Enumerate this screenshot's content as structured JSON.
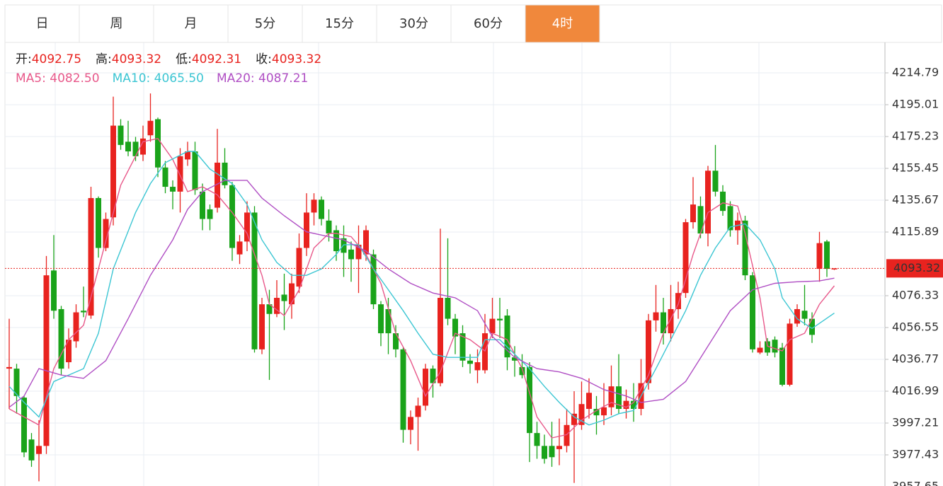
{
  "tabs": {
    "items": [
      "日",
      "周",
      "月",
      "5分",
      "15分",
      "30分",
      "60分",
      "4时"
    ],
    "active": 7
  },
  "chart_data": {
    "type": "candlestick",
    "info_labels": [
      "开:",
      "高:",
      "低:",
      "收:"
    ],
    "legend_separator": ": ",
    "up_color": "#e8231f",
    "down_color": "#1aa31a",
    "ylim": [
      3957.65,
      4233.69
    ],
    "yticks": [
      4214.79,
      4195.01,
      4175.23,
      4155.45,
      4135.67,
      4115.89,
      4076.33,
      4056.55,
      4036.77,
      4016.99,
      3997.21,
      3977.43,
      3957.65
    ],
    "grid": true,
    "candles": [
      {
        "open": 4031,
        "high": 4062,
        "low": 4006,
        "close": 4032
      },
      {
        "open": 4031,
        "high": 4034,
        "low": 4003,
        "close": 4014
      },
      {
        "open": 4013,
        "high": 4014,
        "low": 3976,
        "close": 3979
      },
      {
        "open": 3987,
        "high": 3991,
        "low": 3970,
        "close": 3974
      },
      {
        "open": 3978,
        "high": 3999,
        "low": 3961,
        "close": 3983
      },
      {
        "open": 3983,
        "high": 4101,
        "low": 3978,
        "close": 4089
      },
      {
        "open": 4092,
        "high": 4114,
        "low": 4062,
        "close": 4067
      },
      {
        "open": 4068,
        "high": 4070,
        "low": 4027,
        "close": 4031
      },
      {
        "open": 4035,
        "high": 4056,
        "low": 4031,
        "close": 4049
      },
      {
        "open": 4048,
        "high": 4071,
        "low": 4044,
        "close": 4066
      },
      {
        "open": 4067,
        "high": 4082,
        "low": 4063,
        "close": 4066
      },
      {
        "open": 4064,
        "high": 4144,
        "low": 4062,
        "close": 4137
      },
      {
        "open": 4137,
        "high": 4138,
        "low": 4100,
        "close": 4106
      },
      {
        "open": 4106,
        "high": 4128,
        "low": 4104,
        "close": 4124
      },
      {
        "open": 4125,
        "high": 4200,
        "low": 4120,
        "close": 4182
      },
      {
        "open": 4182,
        "high": 4186,
        "low": 4167,
        "close": 4170
      },
      {
        "open": 4172,
        "high": 4185,
        "low": 4163,
        "close": 4166
      },
      {
        "open": 4172,
        "high": 4175,
        "low": 4160,
        "close": 4163
      },
      {
        "open": 4164,
        "high": 4182,
        "low": 4160,
        "close": 4174
      },
      {
        "open": 4176,
        "high": 4202,
        "low": 4172,
        "close": 4185
      },
      {
        "open": 4186,
        "high": 4187,
        "low": 4150,
        "close": 4156
      },
      {
        "open": 4156,
        "high": 4160,
        "low": 4140,
        "close": 4144
      },
      {
        "open": 4144,
        "high": 4148,
        "low": 4130,
        "close": 4141
      },
      {
        "open": 4141,
        "high": 4168,
        "low": 4128,
        "close": 4163
      },
      {
        "open": 4161,
        "high": 4172,
        "low": 4157,
        "close": 4166
      },
      {
        "open": 4166,
        "high": 4172,
        "low": 4139,
        "close": 4142
      },
      {
        "open": 4141,
        "high": 4146,
        "low": 4117,
        "close": 4124
      },
      {
        "open": 4130,
        "high": 4133,
        "low": 4117,
        "close": 4124
      },
      {
        "open": 4131,
        "high": 4180,
        "low": 4128,
        "close": 4159
      },
      {
        "open": 4159,
        "high": 4168,
        "low": 4143,
        "close": 4145
      },
      {
        "open": 4145,
        "high": 4147,
        "low": 4098,
        "close": 4106
      },
      {
        "open": 4102,
        "high": 4114,
        "low": 4096,
        "close": 4110
      },
      {
        "open": 4110,
        "high": 4135,
        "low": 4104,
        "close": 4128
      },
      {
        "open": 4128,
        "high": 4132,
        "low": 4041,
        "close": 4043
      },
      {
        "open": 4043,
        "high": 4075,
        "low": 4040,
        "close": 4071
      },
      {
        "open": 4071,
        "high": 4080,
        "low": 4024,
        "close": 4065
      },
      {
        "open": 4065,
        "high": 4086,
        "low": 4063,
        "close": 4075
      },
      {
        "open": 4077,
        "high": 4090,
        "low": 4055,
        "close": 4073
      },
      {
        "open": 4071,
        "high": 4090,
        "low": 4062,
        "close": 4084
      },
      {
        "open": 4082,
        "high": 4115,
        "low": 4078,
        "close": 4106
      },
      {
        "open": 4106,
        "high": 4140,
        "low": 4101,
        "close": 4128
      },
      {
        "open": 4128,
        "high": 4140,
        "low": 4120,
        "close": 4136
      },
      {
        "open": 4136,
        "high": 4138,
        "low": 4120,
        "close": 4124
      },
      {
        "open": 4123,
        "high": 4130,
        "low": 4110,
        "close": 4115
      },
      {
        "open": 4117,
        "high": 4120,
        "low": 4098,
        "close": 4104
      },
      {
        "open": 4112,
        "high": 4120,
        "low": 4088,
        "close": 4103
      },
      {
        "open": 4105,
        "high": 4110,
        "low": 4085,
        "close": 4099
      },
      {
        "open": 4099,
        "high": 4120,
        "low": 4078,
        "close": 4108
      },
      {
        "open": 4102,
        "high": 4120,
        "low": 4098,
        "close": 4117
      },
      {
        "open": 4102,
        "high": 4105,
        "low": 4068,
        "close": 4071
      },
      {
        "open": 4071,
        "high": 4073,
        "low": 4045,
        "close": 4053
      },
      {
        "open": 4068,
        "high": 4075,
        "low": 4040,
        "close": 4053
      },
      {
        "open": 4053,
        "high": 4058,
        "low": 4038,
        "close": 4043
      },
      {
        "open": 4043,
        "high": 4044,
        "low": 3985,
        "close": 3993
      },
      {
        "open": 3993,
        "high": 4005,
        "low": 3984,
        "close": 4001
      },
      {
        "open": 4001,
        "high": 4013,
        "low": 3980,
        "close": 4008
      },
      {
        "open": 4008,
        "high": 4034,
        "low": 4005,
        "close": 4031
      },
      {
        "open": 4031,
        "high": 4033,
        "low": 4013,
        "close": 4022
      },
      {
        "open": 4022,
        "high": 4118,
        "low": 4020,
        "close": 4075
      },
      {
        "open": 4075,
        "high": 4112,
        "low": 4058,
        "close": 4062
      },
      {
        "open": 4062,
        "high": 4065,
        "low": 4040,
        "close": 4051
      },
      {
        "open": 4053,
        "high": 4058,
        "low": 4032,
        "close": 4036
      },
      {
        "open": 4036,
        "high": 4040,
        "low": 4028,
        "close": 4034
      },
      {
        "open": 4030,
        "high": 4043,
        "low": 4022,
        "close": 4035
      },
      {
        "open": 4030,
        "high": 4065,
        "low": 4028,
        "close": 4053
      },
      {
        "open": 4053,
        "high": 4075,
        "low": 4050,
        "close": 4062
      },
      {
        "open": 4062,
        "high": 4075,
        "low": 4050,
        "close": 4061
      },
      {
        "open": 4064,
        "high": 4068,
        "low": 4030,
        "close": 4038
      },
      {
        "open": 4038,
        "high": 4045,
        "low": 4026,
        "close": 4036
      },
      {
        "open": 4032,
        "high": 4040,
        "low": 4025,
        "close": 4027
      },
      {
        "open": 4032,
        "high": 4035,
        "low": 3973,
        "close": 3991
      },
      {
        "open": 3991,
        "high": 3998,
        "low": 3975,
        "close": 3983
      },
      {
        "open": 3983,
        "high": 3990,
        "low": 3972,
        "close": 3975
      },
      {
        "open": 3983,
        "high": 3998,
        "low": 3970,
        "close": 3976
      },
      {
        "open": 3981,
        "high": 4000,
        "low": 3971,
        "close": 3983
      },
      {
        "open": 3983,
        "high": 4006,
        "low": 3979,
        "close": 3996
      },
      {
        "open": 3996,
        "high": 4017,
        "low": 3960,
        "close": 4003
      },
      {
        "open": 3996,
        "high": 4023,
        "low": 3993,
        "close": 4009
      },
      {
        "open": 4006,
        "high": 4025,
        "low": 4000,
        "close": 4016
      },
      {
        "open": 4006,
        "high": 4014,
        "low": 3990,
        "close": 4002
      },
      {
        "open": 4002,
        "high": 4022,
        "low": 3996,
        "close": 4007
      },
      {
        "open": 4007,
        "high": 4033,
        "low": 4002,
        "close": 4020
      },
      {
        "open": 4020,
        "high": 4040,
        "low": 4003,
        "close": 4006
      },
      {
        "open": 4006,
        "high": 4018,
        "low": 4000,
        "close": 4011
      },
      {
        "open": 4011,
        "high": 4022,
        "low": 3998,
        "close": 4006
      },
      {
        "open": 4006,
        "high": 4037,
        "low": 4002,
        "close": 4022
      },
      {
        "open": 4022,
        "high": 4065,
        "low": 4018,
        "close": 4061
      },
      {
        "open": 4061,
        "high": 4083,
        "low": 4054,
        "close": 4066
      },
      {
        "open": 4066,
        "high": 4075,
        "low": 4046,
        "close": 4053
      },
      {
        "open": 4053,
        "high": 4083,
        "low": 4048,
        "close": 4068
      },
      {
        "open": 4068,
        "high": 4085,
        "low": 4062,
        "close": 4078
      },
      {
        "open": 4078,
        "high": 4124,
        "low": 4075,
        "close": 4122
      },
      {
        "open": 4122,
        "high": 4150,
        "low": 4118,
        "close": 4133
      },
      {
        "open": 4132,
        "high": 4138,
        "low": 4112,
        "close": 4115
      },
      {
        "open": 4115,
        "high": 4157,
        "low": 4107,
        "close": 4154
      },
      {
        "open": 4154,
        "high": 4170,
        "low": 4138,
        "close": 4141
      },
      {
        "open": 4141,
        "high": 4145,
        "low": 4126,
        "close": 4129
      },
      {
        "open": 4132,
        "high": 4135,
        "low": 4113,
        "close": 4117
      },
      {
        "open": 4117,
        "high": 4128,
        "low": 4108,
        "close": 4123
      },
      {
        "open": 4123,
        "high": 4126,
        "low": 4086,
        "close": 4089
      },
      {
        "open": 4089,
        "high": 4091,
        "low": 4041,
        "close": 4043
      },
      {
        "open": 4041,
        "high": 4048,
        "low": 4040,
        "close": 4044
      },
      {
        "open": 4048,
        "high": 4050,
        "low": 4039,
        "close": 4041
      },
      {
        "open": 4049,
        "high": 4051,
        "low": 4038,
        "close": 4041
      },
      {
        "open": 4044,
        "high": 4047,
        "low": 4020,
        "close": 4021
      },
      {
        "open": 4021,
        "high": 4062,
        "low": 4020,
        "close": 4059
      },
      {
        "open": 4059,
        "high": 4071,
        "low": 4057,
        "close": 4068
      },
      {
        "open": 4067,
        "high": 4083,
        "low": 4058,
        "close": 4062
      },
      {
        "open": 4062,
        "high": 4066,
        "low": 4047,
        "close": 4052
      },
      {
        "open": 4093,
        "high": 4116,
        "low": 4085,
        "close": 4109
      },
      {
        "open": 4110,
        "high": 4111,
        "low": 4088,
        "close": 4093
      },
      {
        "open": 4092.75,
        "high": 4093.32,
        "low": 4092.31,
        "close": 4093.32
      }
    ],
    "series": [
      {
        "name": "MA5",
        "color": "#e8588a",
        "value_label": "4082.50",
        "x": [
          0,
          4,
          6,
          8,
          10,
          12,
          15,
          18,
          20,
          22,
          24,
          26,
          28,
          30,
          32,
          34,
          35,
          37,
          39,
          41,
          43,
          44,
          46,
          48,
          50,
          52,
          54,
          56,
          58,
          60,
          62,
          64,
          65,
          67,
          69,
          71,
          73,
          75,
          77,
          79,
          81,
          83,
          84,
          86,
          88,
          90,
          92,
          94,
          96,
          98,
          99,
          101,
          102,
          104,
          105,
          107,
          109,
          111
        ],
        "values": [
          4006,
          3996,
          4031,
          4049,
          4058,
          4093,
          4145,
          4172,
          4174,
          4161,
          4141,
          4144,
          4139,
          4128,
          4115,
          4089,
          4071,
          4064,
          4080,
          4106,
          4115,
          4115,
          4113,
          4102,
          4084,
          4053,
          4036,
          4014,
          4029,
          4053,
          4049,
          4042,
          4053,
          4049,
          4031,
          4001,
          3988,
          3990,
          3999,
          4005,
          4010,
          4007,
          4010,
          4027,
          4053,
          4071,
          4102,
          4128,
          4134,
          4132,
          4115,
          4075,
          4045,
          4042,
          4049,
          4053,
          4071,
          4082.5
        ]
      },
      {
        "name": "MA10",
        "color": "#3cc6d3",
        "value_label": "4065.50",
        "x": [
          0,
          2,
          4,
          6,
          10,
          12,
          14,
          17,
          19,
          21,
          24,
          25,
          27,
          30,
          32,
          34,
          36,
          38,
          40,
          42,
          44,
          45,
          47,
          49,
          51,
          53,
          55,
          57,
          59,
          61,
          63,
          64,
          66,
          68,
          70,
          72,
          74,
          76,
          78,
          80,
          82,
          84,
          85,
          87,
          89,
          91,
          93,
          95,
          97,
          99,
          101,
          103,
          104,
          106,
          108,
          111
        ],
        "values": [
          4020,
          4010,
          4001,
          4023,
          4031,
          4053,
          4093,
          4128,
          4146,
          4159,
          4166,
          4166,
          4155,
          4146,
          4133,
          4111,
          4097,
          4089,
          4089,
          4093,
          4102,
          4108,
          4108,
          4093,
          4080,
          4067,
          4053,
          4040,
          4038,
          4038,
          4038,
          4049,
          4049,
          4040,
          4031,
          4020,
          4010,
          4001,
          3996,
          3999,
          4003,
          4005,
          4014,
          4031,
          4049,
          4067,
          4089,
          4106,
          4119,
          4121,
          4111,
          4093,
          4075,
          4062,
          4056,
          4065.5
        ]
      },
      {
        "name": "MA20",
        "color": "#b04fc4",
        "value_label": "4087.21",
        "x": [
          0,
          2,
          4,
          7,
          10,
          13,
          16,
          19,
          22,
          24,
          26,
          29,
          32,
          34,
          37,
          40,
          43,
          45,
          48,
          51,
          54,
          57,
          60,
          63,
          65,
          68,
          71,
          74,
          77,
          80,
          83,
          85,
          88,
          91,
          94,
          97,
          100,
          103,
          106,
          109,
          111
        ],
        "values": [
          4007,
          4014,
          4031,
          4027,
          4025,
          4036,
          4062,
          4089,
          4111,
          4130,
          4141,
          4148,
          4148,
          4137,
          4126,
          4116,
          4113,
          4111,
          4104,
          4093,
          4084,
          4078,
          4075,
          4067,
          4051,
          4038,
          4031,
          4029,
          4025,
          4018,
          4014,
          4010,
          4012,
          4023,
          4045,
          4067,
          4080,
          4084,
          4085,
          4085.5,
          4087.21
        ]
      }
    ]
  }
}
